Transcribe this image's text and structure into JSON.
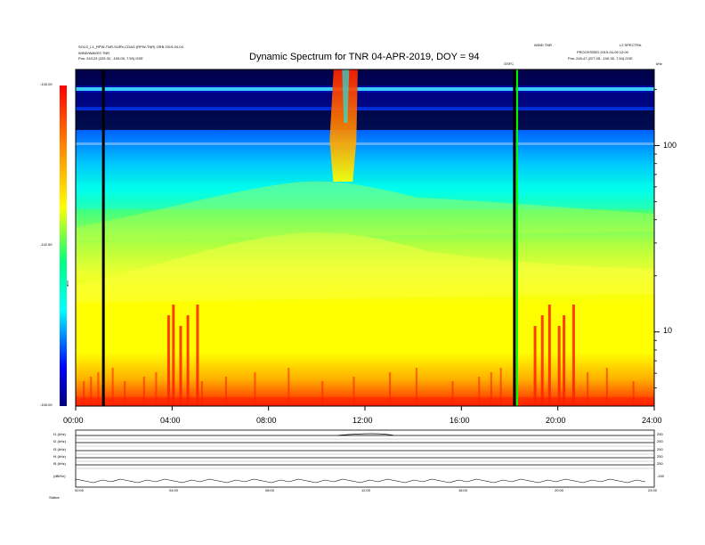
{
  "header": {
    "title": "Dynamic Spectrum for TNR 04-APR-2019, DOY = 94",
    "left_line1": "SOLO_L1_RPW-TNR-SURV-CDAG  (RPW-TNR)  ORB  2019-04-04",
    "left_line2": "WIND/WAVES  TNR",
    "left_pos_label": "Pos:",
    "left_pos_value": "243.23 (225.32, -100.05, 7.50) GSE",
    "right_line1": "WIND  TNR",
    "right_line2": "L2 SPECTRA",
    "right_line3": "PROCESSED  2019-04-05  12:00",
    "right_pos_label": "Pos:",
    "right_pos_value": "245.47 (227.05, -100.35, 7.54) GSE",
    "marker_label": "GSFC",
    "corner_label": "kHz"
  },
  "colorbar": {
    "max_label": "-130.00",
    "mid_label": "-142.50",
    "min_label": "-155.00",
    "units_label": "dBV"
  },
  "chart_data": {
    "type": "heatmap",
    "title": "Dynamic Spectrum for TNR 04-APR-2019, DOY = 94",
    "x_ticks": [
      "00:00",
      "04:00",
      "08:00",
      "12:00",
      "16:00",
      "20:00",
      "24:00"
    ],
    "x_range_hours": [
      0,
      24
    ],
    "y_scale": "log",
    "y_ticks": [
      "100",
      "10"
    ],
    "y_range_khz": [
      4,
      256
    ],
    "color_range_db": [
      -155.0,
      -130.0
    ],
    "colormap": [
      "#000080",
      "#0000ff",
      "#00c8ff",
      "#00ffff",
      "#00ff80",
      "#c0ff30",
      "#ffff00",
      "#ff8000",
      "#ff0000"
    ],
    "data_gaps_hours": [
      1.15,
      18.2
    ],
    "burst_interval_hours": [
      10.7,
      11.7
    ]
  },
  "panels": {
    "rows": [
      {
        "label": "f1 (kHz)",
        "right": "250"
      },
      {
        "label": "f2 (kHz)",
        "right": "250"
      },
      {
        "label": "f3 (kHz)",
        "right": "250"
      },
      {
        "label": "f4 (kHz)",
        "right": "250"
      },
      {
        "label": "f5 (kHz)",
        "right": "250"
      },
      {
        "label": "(dB/Hz)",
        "right": "-150"
      }
    ],
    "x_ticks": [
      "00:00",
      "04:00",
      "08:00",
      "12:00",
      "16:00",
      "20:00",
      "24:00"
    ],
    "status_label": "Status:"
  }
}
